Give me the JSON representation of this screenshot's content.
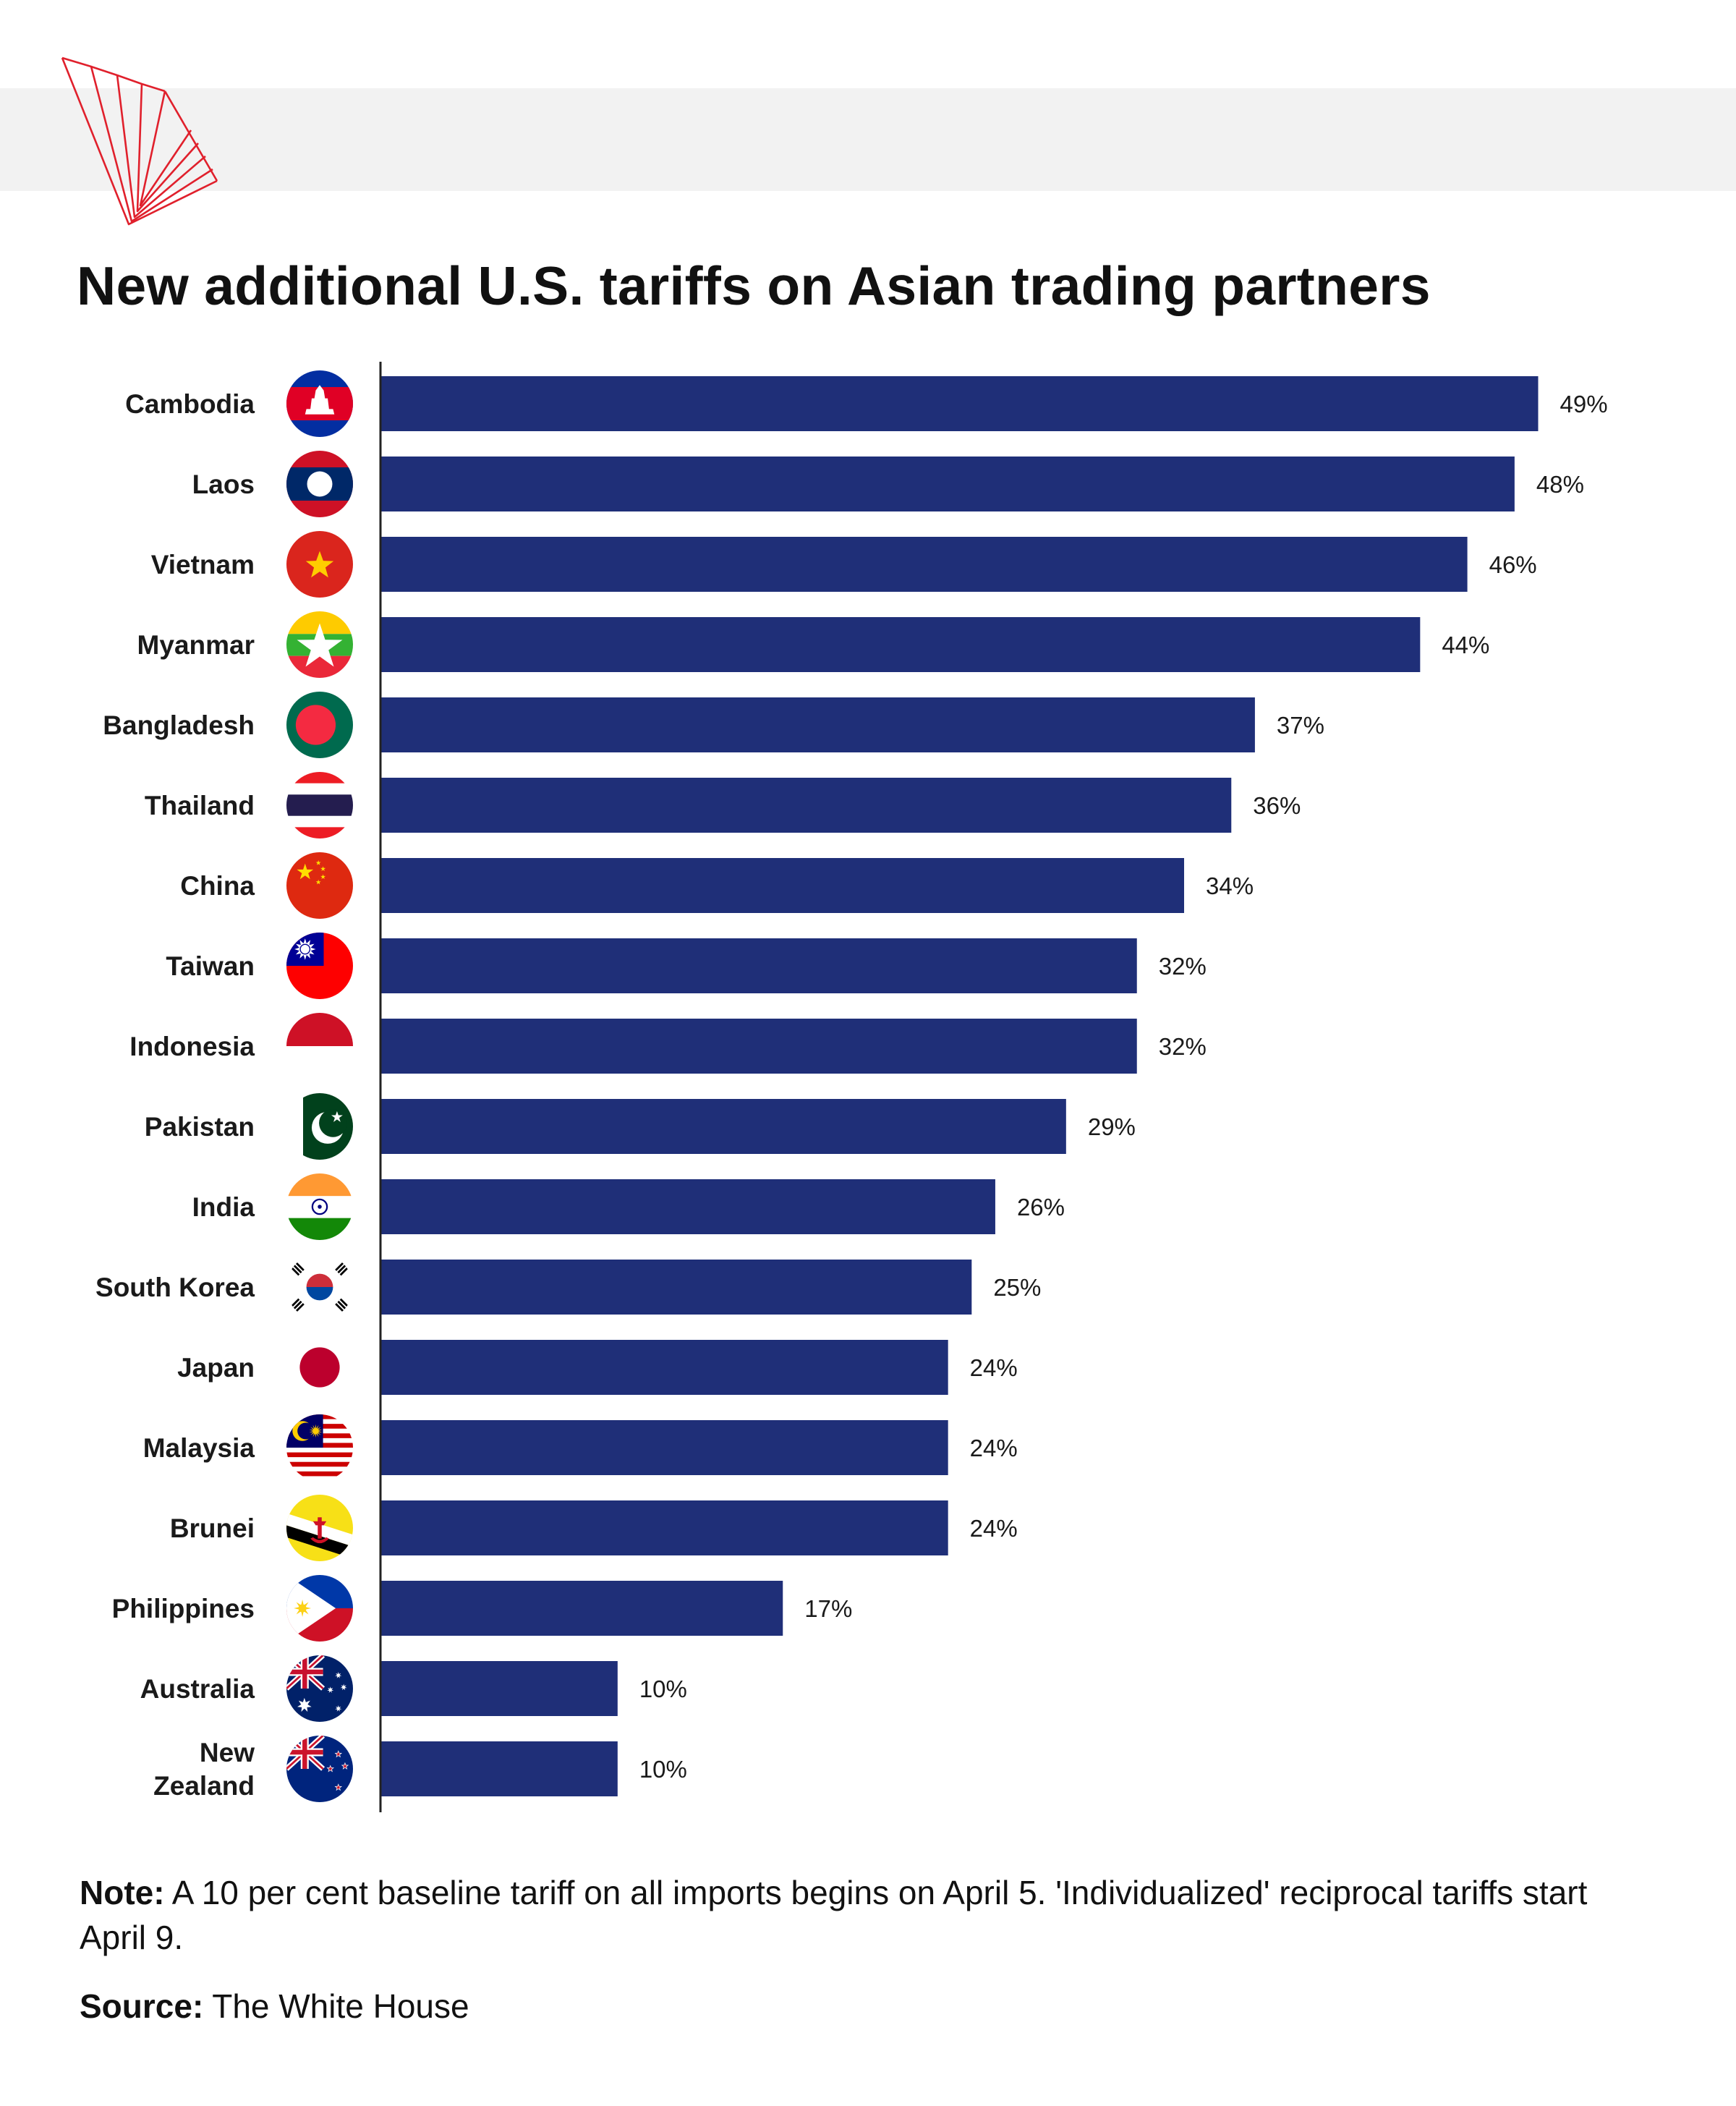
{
  "title": "New additional U.S. tariffs on Asian trading partners",
  "note": {
    "label": "Note:",
    "text": "A 10 per cent baseline tariff on all imports begins on April 5. 'Individualized' reciprocal tariffs start April 9."
  },
  "source": {
    "label": "Source:",
    "text": "The White House"
  },
  "colors": {
    "bar": "#1f2f78",
    "logo": "#e0202c",
    "band": "#f2f2f2"
  },
  "chart_data": {
    "type": "bar",
    "orientation": "horizontal",
    "title": "New additional U.S. tariffs on Asian trading partners",
    "xlabel": "",
    "ylabel": "",
    "unit": "%",
    "xlim": [
      0,
      50
    ],
    "grid": false,
    "legend": "none",
    "categories": [
      "Cambodia",
      "Laos",
      "Vietnam",
      "Myanmar",
      "Bangladesh",
      "Thailand",
      "China",
      "Taiwan",
      "Indonesia",
      "Pakistan",
      "India",
      "South Korea",
      "Japan",
      "Malaysia",
      "Brunei",
      "Philippines",
      "Australia",
      "New Zealand"
    ],
    "category_lines": [
      [
        "Cambodia"
      ],
      [
        "Laos"
      ],
      [
        "Vietnam"
      ],
      [
        "Myanmar"
      ],
      [
        "Bangladesh"
      ],
      [
        "Thailand"
      ],
      [
        "China"
      ],
      [
        "Taiwan"
      ],
      [
        "Indonesia"
      ],
      [
        "Pakistan"
      ],
      [
        "India"
      ],
      [
        "South Korea"
      ],
      [
        "Japan"
      ],
      [
        "Malaysia"
      ],
      [
        "Brunei"
      ],
      [
        "Philippines"
      ],
      [
        "Australia"
      ],
      [
        "New",
        "Zealand"
      ]
    ],
    "values": [
      49,
      48,
      46,
      44,
      37,
      36,
      34,
      32,
      32,
      29,
      26,
      25,
      24,
      24,
      24,
      17,
      10,
      10
    ],
    "value_labels": [
      "49%",
      "48%",
      "46%",
      "44%",
      "37%",
      "36%",
      "34%",
      "32%",
      "32%",
      "29%",
      "26%",
      "25%",
      "24%",
      "24%",
      "24%",
      "17%",
      "10%",
      "10%"
    ],
    "flag_icons": [
      "cambodia-flag-icon",
      "laos-flag-icon",
      "vietnam-flag-icon",
      "myanmar-flag-icon",
      "bangladesh-flag-icon",
      "thailand-flag-icon",
      "china-flag-icon",
      "taiwan-flag-icon",
      "indonesia-flag-icon",
      "pakistan-flag-icon",
      "india-flag-icon",
      "south-korea-flag-icon",
      "japan-flag-icon",
      "malaysia-flag-icon",
      "brunei-flag-icon",
      "philippines-flag-icon",
      "australia-flag-icon",
      "new-zealand-flag-icon"
    ]
  }
}
